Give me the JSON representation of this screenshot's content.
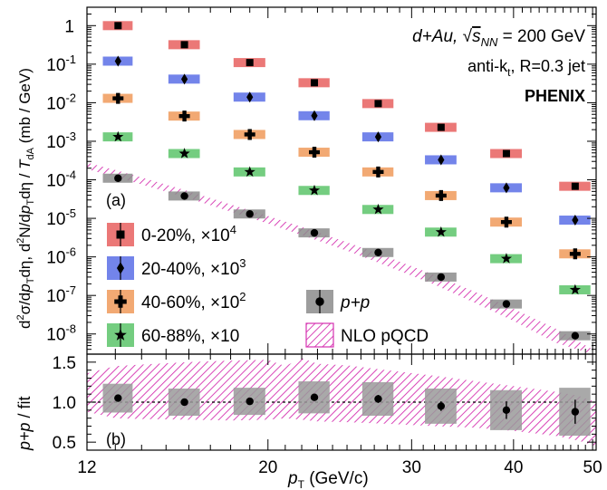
{
  "chart_data": [
    {
      "panel": "a",
      "type": "scatter",
      "panel_label": "(a)",
      "ylabel": "d²σ/dp_T dη, d²N/dp_T dη / T_dA  (mb / GeV)",
      "ylim": [
        3e-09,
        3
      ],
      "y_scale": "log",
      "y_ticks": [
        {
          "v": 1,
          "label": "1"
        },
        {
          "v": 0.1,
          "label": "10-1"
        },
        {
          "v": 0.01,
          "label": "10-2"
        },
        {
          "v": 0.001,
          "label": "10-3"
        },
        {
          "v": 0.0001,
          "label": "10-4"
        },
        {
          "v": 1e-05,
          "label": "10-5"
        },
        {
          "v": 1e-06,
          "label": "10-6"
        },
        {
          "v": 1e-07,
          "label": "10-7"
        },
        {
          "v": 1e-08,
          "label": "10-8"
        }
      ],
      "x": [
        13.1,
        15.8,
        19.0,
        22.8,
        27.3,
        32.6,
        39.2,
        47.6
      ],
      "x_box_halfwidth": [
        0.55,
        0.7,
        0.85,
        1.0,
        1.2,
        1.45,
        1.75,
        2.1
      ],
      "series": [
        {
          "name": "0-20%, ×10⁴",
          "marker": "square",
          "color": "#e8605f",
          "values": [
            1.0,
            0.32,
            0.11,
            0.033,
            0.0095,
            0.0023,
            0.00048,
            6.8e-05
          ]
        },
        {
          "name": "20-40%, ×10³",
          "marker": "diamond",
          "color": "#5a6fe6",
          "values": [
            0.12,
            0.041,
            0.014,
            0.0046,
            0.0013,
            0.00033,
            6.2e-05,
            9e-06
          ]
        },
        {
          "name": "40-60%, ×10²",
          "marker": "cross",
          "color": "#f09a5a",
          "values": [
            0.013,
            0.0045,
            0.0015,
            0.00052,
            0.00016,
            3.9e-05,
            8e-06,
            1.2e-06
          ]
        },
        {
          "name": "60-88%, ×10",
          "marker": "star",
          "color": "#5cc46a",
          "values": [
            0.0013,
            0.00048,
            0.00016,
            5.3e-05,
            1.7e-05,
            4.4e-06,
            9e-07,
            1.4e-07
          ]
        },
        {
          "name": "p+p",
          "marker": "circle",
          "color": "#8c8c8c",
          "values": [
            0.00011,
            3.8e-05,
            1.3e-05,
            4.2e-06,
            1.3e-06,
            3e-07,
            6e-08,
            9e-09
          ]
        }
      ],
      "band": {
        "name": "NLO pQCD",
        "color": "#d531b0",
        "x": [
          12,
          13,
          14,
          16,
          18,
          20,
          22,
          25,
          28,
          32,
          36,
          40,
          45,
          50
        ],
        "upper": [
          0.00028,
          0.00018,
          0.000115,
          5e-05,
          2.3e-05,
          1.15e-05,
          6e-06,
          2.4e-06,
          1e-06,
          3.4e-07,
          1.2e-07,
          4.5e-08,
          1.4e-08,
          4e-09
        ],
        "lower": [
          0.00019,
          0.00012,
          7.6e-05,
          3.3e-05,
          1.5e-05,
          7.3e-06,
          3.7e-06,
          1.45e-06,
          5.8e-07,
          1.9e-07,
          6.2e-08,
          2.2e-08,
          6e-09,
          3e-09
        ]
      },
      "annotation": {
        "line1_system": "d+Au, ",
        "line1_energy": " = 200 GeV",
        "line1_sqrt": "√",
        "line1_s": "s",
        "line1_sub": "NN",
        "line2_algo": "anti-k",
        "line2_sub": "t",
        "line2_r": ", R=0.3 jet",
        "line3": "PHENIX"
      }
    },
    {
      "panel": "b",
      "type": "scatter",
      "panel_label": "(b)",
      "ylabel": "p+p / fit",
      "ylim": [
        0.4,
        1.6
      ],
      "y_ticks": [
        0.5,
        1.0,
        1.5
      ],
      "x_ticks": [
        {
          "v": 12,
          "label": "12"
        },
        {
          "v": 20,
          "label": "20"
        },
        {
          "v": 30,
          "label": "30"
        },
        {
          "v": 40,
          "label": "40"
        },
        {
          "v": 50,
          "label": "50"
        }
      ],
      "xlabel": "p_T (GeV/c)",
      "xlim": [
        12,
        50.5
      ],
      "x_scale": "log",
      "reference_line": 1.0,
      "x": [
        13.1,
        15.8,
        19.0,
        22.8,
        27.3,
        32.6,
        39.2,
        47.6
      ],
      "values": [
        1.05,
        1.0,
        1.01,
        1.06,
        1.04,
        0.95,
        0.9,
        0.88
      ],
      "stat_err": [
        0.03,
        0.03,
        0.03,
        0.04,
        0.05,
        0.06,
        0.11,
        0.15
      ],
      "sys_err": [
        0.18,
        0.17,
        0.17,
        0.2,
        0.21,
        0.22,
        0.25,
        0.3
      ],
      "band": {
        "x": [
          12,
          13,
          14,
          16,
          18,
          20,
          21,
          22,
          23,
          25,
          28,
          32,
          36,
          40,
          45,
          48,
          50.5
        ],
        "upper": [
          1.36,
          1.45,
          1.47,
          1.5,
          1.52,
          1.53,
          1.45,
          1.55,
          1.48,
          1.46,
          1.4,
          1.33,
          1.26,
          1.2,
          1.13,
          1.08,
          1.0
        ],
        "lower": [
          0.88,
          0.8,
          0.79,
          0.78,
          0.77,
          0.78,
          0.8,
          0.78,
          0.76,
          0.75,
          0.73,
          0.7,
          0.68,
          0.64,
          0.58,
          0.52,
          0.45
        ]
      }
    }
  ],
  "units_top": "(mb / GeV)",
  "xaxis_label": {
    "p": "p",
    "sub": "T",
    "unit": " (GeV/c)"
  },
  "yaxis_a": {
    "d2": "d",
    "p2": "2",
    "sig": "σ/d",
    "p": "p",
    "T": "T",
    "deta": "dη, d",
    "p22": "2",
    "N": "N/d",
    "pt2": "p",
    "T2": "T",
    "deta2": "dη / ",
    "TT": "T",
    "dA": "dA",
    "unit": "  (mb / GeV)"
  },
  "yaxis_b": {
    "pp": "p+p",
    "fit": " / fit"
  }
}
